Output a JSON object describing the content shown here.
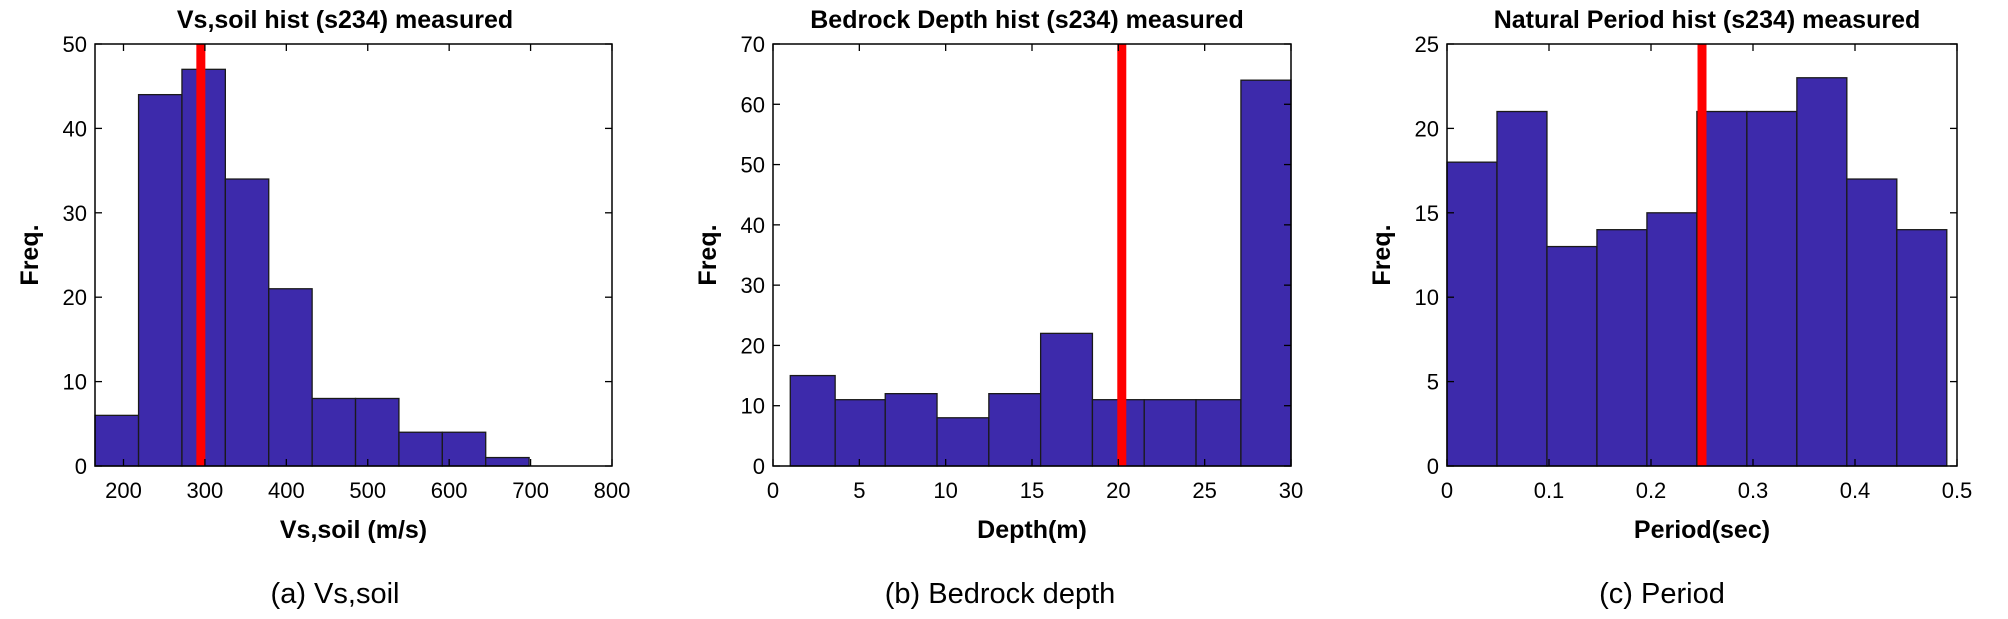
{
  "colors": {
    "bar": "#3d2aab",
    "bar_edge": "#1a1a1a",
    "marker": "#ff0000",
    "axis": "#000000"
  },
  "chart_data": [
    {
      "type": "bar",
      "title": "Vs,soil hist (s234) measured",
      "xlabel": "Vs,soil (m/s)",
      "ylabel": "Freq.",
      "caption": "(a) Vs,soil",
      "xlim": [
        165,
        800
      ],
      "ylim": [
        0,
        50
      ],
      "xticks": [
        200,
        300,
        400,
        500,
        600,
        700,
        800
      ],
      "yticks": [
        0,
        10,
        20,
        30,
        40,
        50
      ],
      "bin_edges": [
        165,
        218.5,
        271.8,
        325.1,
        378.4,
        431.7,
        485,
        538.3,
        591.6,
        644.9,
        698.2,
        751.5
      ],
      "values": [
        6,
        44,
        47,
        34,
        21,
        8,
        8,
        4,
        4,
        1,
        0
      ],
      "marker_x": 295
    },
    {
      "type": "bar",
      "title": "Bedrock Depth hist (s234) measured",
      "xlabel": "Depth(m)",
      "ylabel": "Freq.",
      "caption": "(b) Bedrock depth",
      "xlim": [
        0,
        30
      ],
      "ylim": [
        0,
        70
      ],
      "xticks": [
        0,
        5,
        10,
        15,
        20,
        25,
        30
      ],
      "yticks": [
        0,
        10,
        20,
        30,
        40,
        50,
        60,
        70
      ],
      "bin_edges": [
        1,
        3.6,
        6.5,
        9.5,
        12.5,
        15.5,
        18.5,
        20,
        21.5,
        24.5,
        27.1,
        30
      ],
      "values": [
        15,
        11,
        12,
        8,
        12,
        22,
        11,
        11,
        11,
        11,
        64
      ],
      "marker_x": 20.2
    },
    {
      "type": "bar",
      "title": "Natural Period hist (s234) measured",
      "xlabel": "Period(sec)",
      "ylabel": "Freq.",
      "caption": "(c) Period",
      "xlim": [
        0,
        0.5
      ],
      "ylim": [
        0,
        25
      ],
      "xticks": [
        0,
        0.1,
        0.2,
        0.3,
        0.4,
        0.5
      ],
      "yticks": [
        0,
        5,
        10,
        15,
        20,
        25
      ],
      "bin_edges": [
        0,
        0.049,
        0.098,
        0.147,
        0.196,
        0.245,
        0.294,
        0.343,
        0.392,
        0.441,
        0.49
      ],
      "values": [
        18,
        21,
        13,
        14,
        15,
        21,
        21,
        23,
        17,
        14
      ],
      "marker_x": 0.25
    }
  ]
}
